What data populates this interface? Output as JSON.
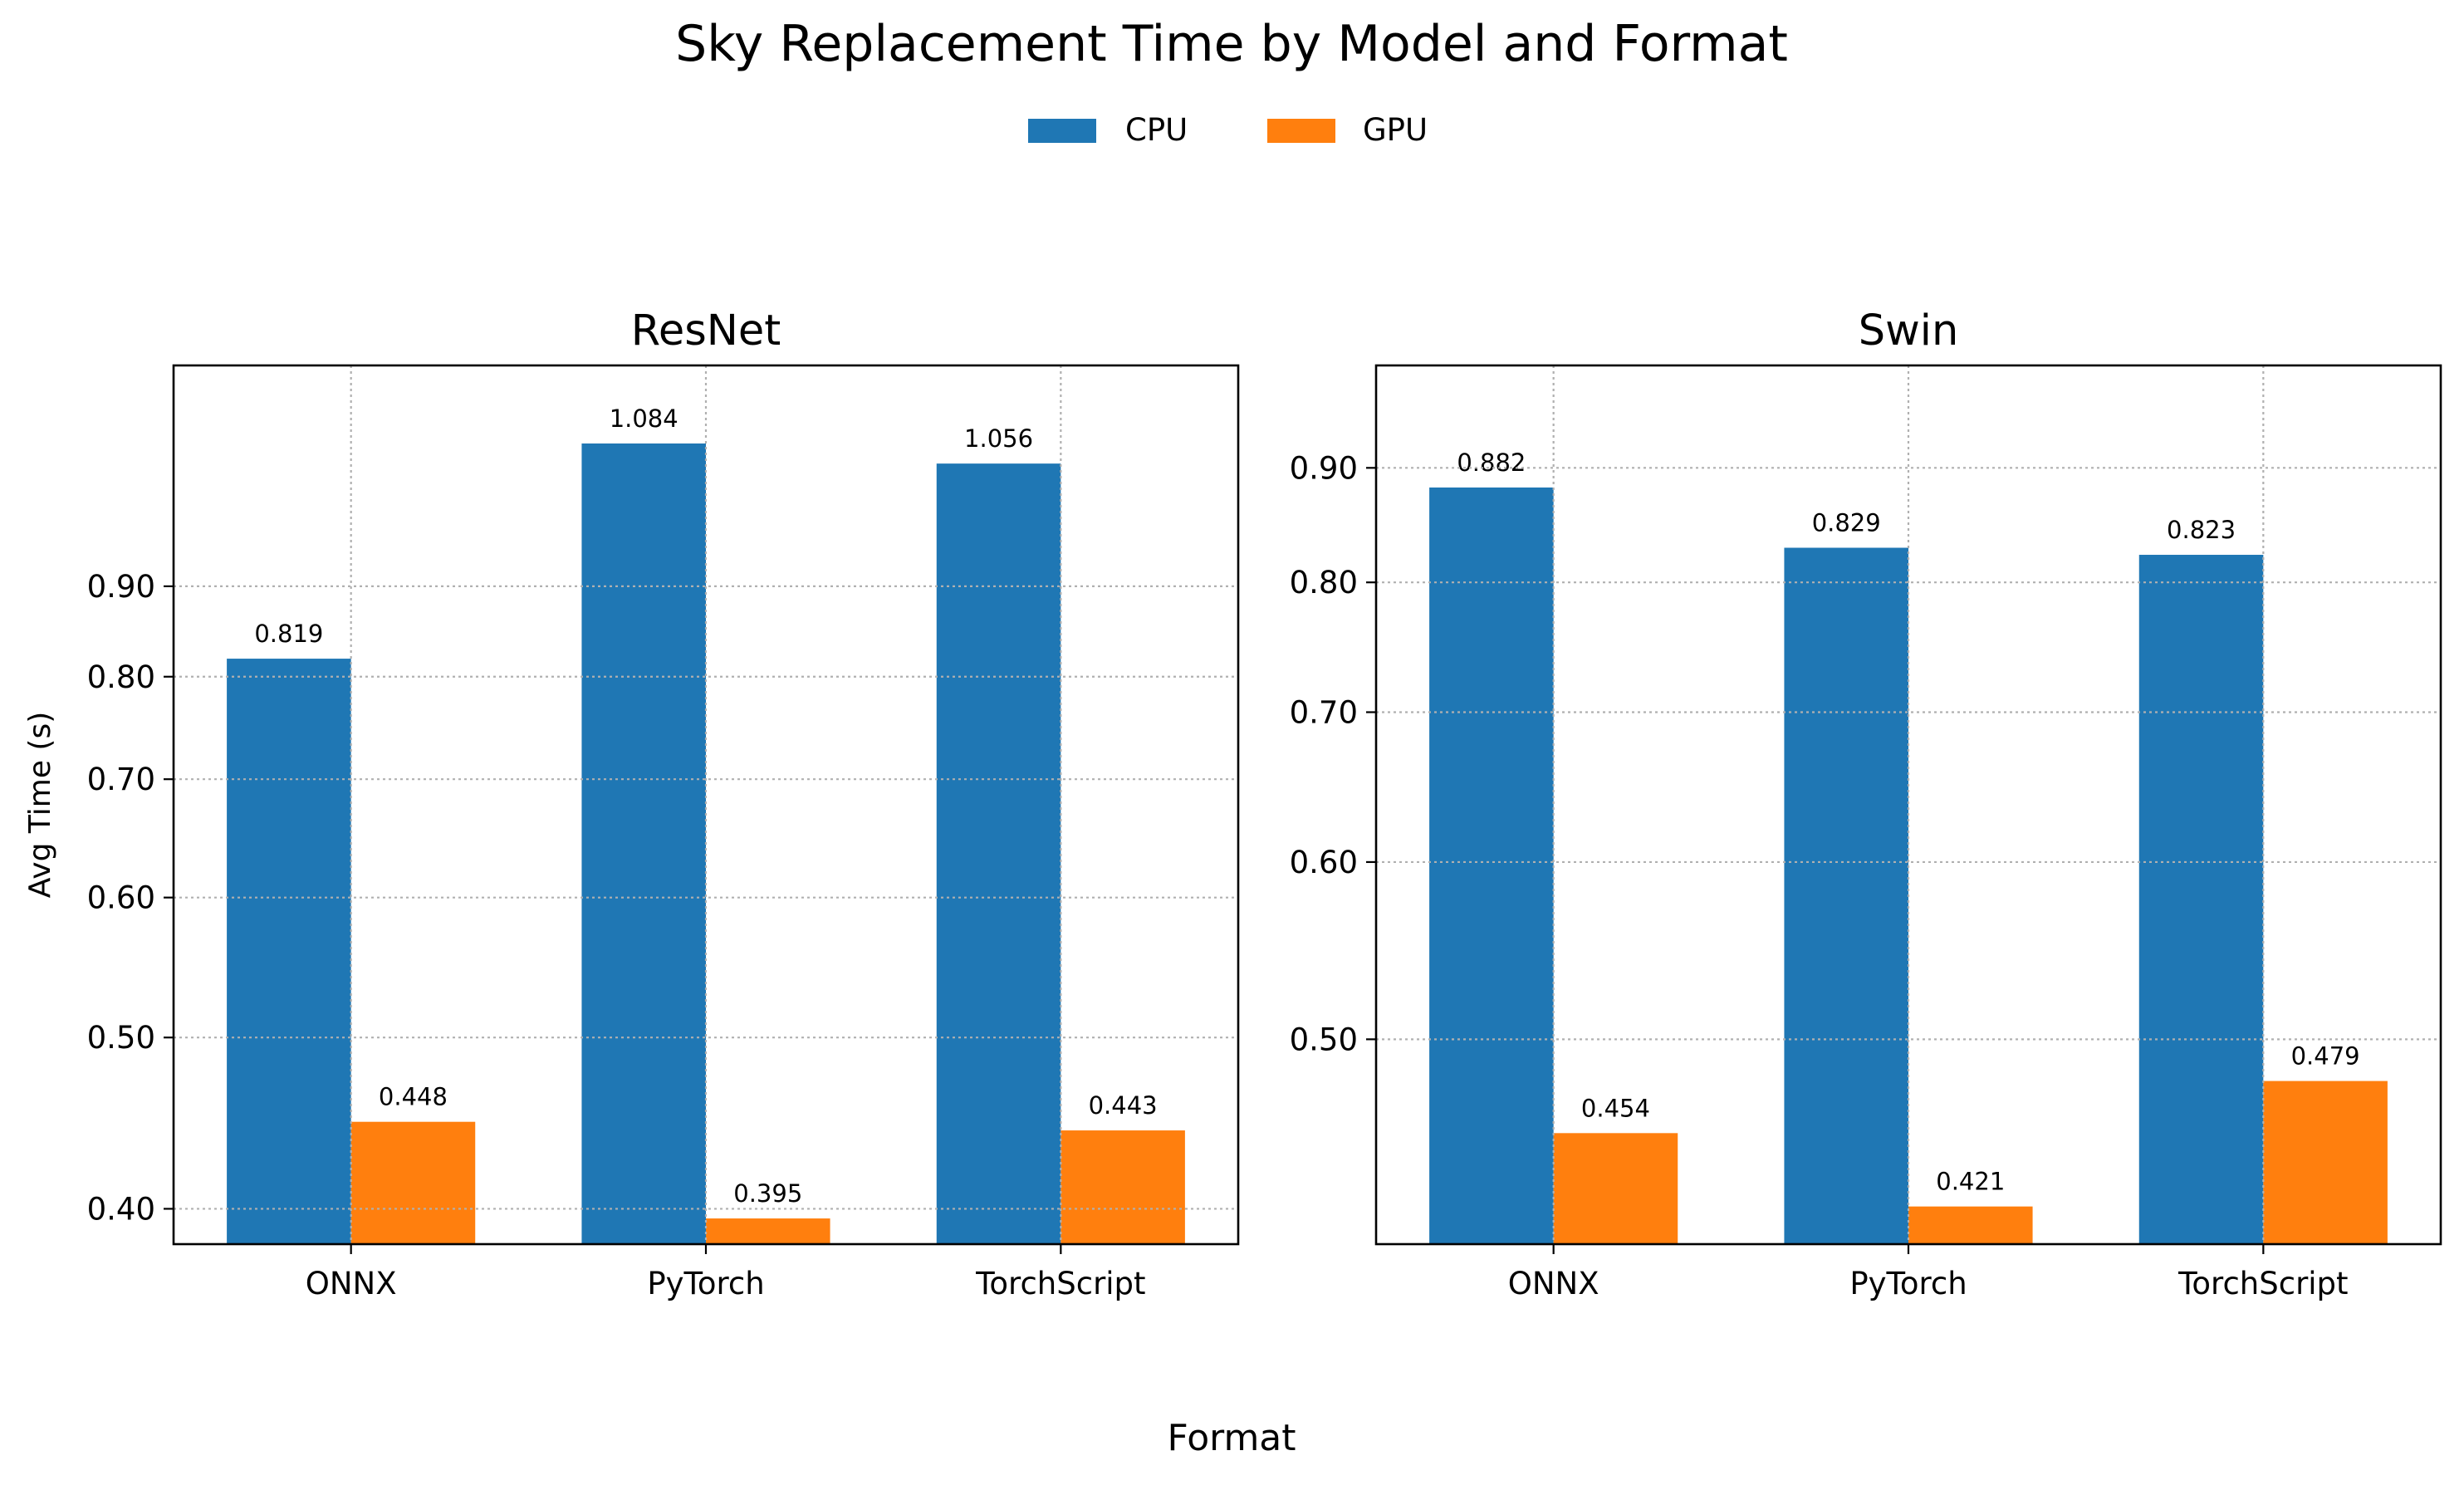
{
  "figure": {
    "title": "Sky Replacement Time by Model and Format",
    "xlabel": "Format",
    "legend": [
      {
        "label": "CPU",
        "color": "#1f77b4"
      },
      {
        "label": "GPU",
        "color": "#ff7f0e"
      }
    ]
  },
  "chart_data": [
    {
      "type": "bar",
      "title": "ResNet",
      "ylabel": "Avg Time (s)",
      "xlabel": "",
      "y_scale": "log",
      "ylim": [
        0.382,
        1.2
      ],
      "yticks": [
        0.4,
        0.5,
        0.6,
        0.7,
        0.8,
        0.9
      ],
      "ytick_labels": [
        "0.40",
        "0.50",
        "0.60",
        "0.70",
        "0.80",
        "0.90"
      ],
      "grid": true,
      "categories": [
        "ONNX",
        "PyTorch",
        "TorchScript"
      ],
      "series": [
        {
          "name": "CPU",
          "color": "#1f77b4",
          "values": [
            0.819,
            1.084,
            1.056
          ],
          "labels": [
            "0.819",
            "1.084",
            "1.056"
          ]
        },
        {
          "name": "GPU",
          "color": "#ff7f0e",
          "values": [
            0.448,
            0.395,
            0.443
          ],
          "labels": [
            "0.448",
            "0.395",
            "0.443"
          ]
        }
      ]
    },
    {
      "type": "bar",
      "title": "Swin",
      "ylabel": "",
      "xlabel": "",
      "y_scale": "log",
      "ylim": [
        0.405,
        1.0
      ],
      "yticks": [
        0.5,
        0.6,
        0.7,
        0.8,
        0.9
      ],
      "ytick_labels": [
        "0.50",
        "0.60",
        "0.70",
        "0.80",
        "0.90"
      ],
      "grid": true,
      "categories": [
        "ONNX",
        "PyTorch",
        "TorchScript"
      ],
      "series": [
        {
          "name": "CPU",
          "color": "#1f77b4",
          "values": [
            0.882,
            0.829,
            0.823
          ],
          "labels": [
            "0.882",
            "0.829",
            "0.823"
          ]
        },
        {
          "name": "GPU",
          "color": "#ff7f0e",
          "values": [
            0.454,
            0.421,
            0.479
          ],
          "labels": [
            "0.454",
            "0.421",
            "0.479"
          ]
        }
      ]
    }
  ]
}
